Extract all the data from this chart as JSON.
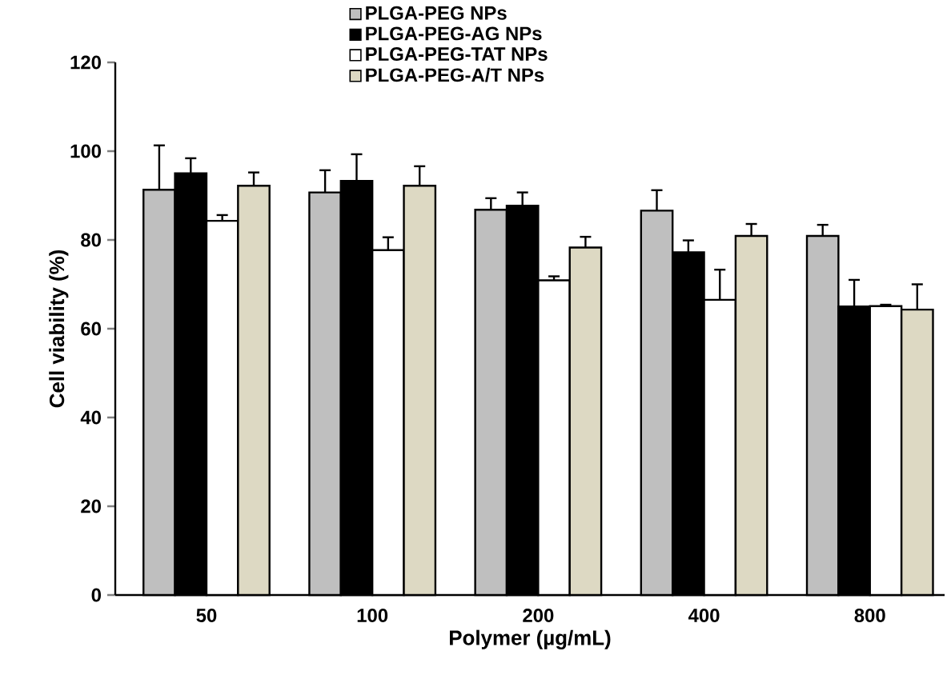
{
  "chart_data": {
    "type": "bar",
    "xlabel": "Polymer  (µg/mL)",
    "ylabel": "Cell viability  (%)",
    "categories": [
      "50",
      "100",
      "200",
      "400",
      "800"
    ],
    "series": [
      {
        "name": "PLGA-PEG NPs",
        "color": "#bfbfbf",
        "values": [
          91.3,
          90.7,
          86.8,
          86.6,
          80.9
        ],
        "errors": [
          [
            91.3,
            101.3
          ],
          [
            90.7,
            95.7
          ],
          [
            86.8,
            89.4
          ],
          [
            86.6,
            91.2
          ],
          [
            80.9,
            83.4
          ]
        ]
      },
      {
        "name": "PLGA-PEG-AG NPs",
        "color": "#000000",
        "values": [
          95.0,
          93.3,
          87.7,
          77.2,
          65.0
        ],
        "errors": [
          [
            95.0,
            98.4
          ],
          [
            93.3,
            99.3
          ],
          [
            87.7,
            90.7
          ],
          [
            77.2,
            79.9
          ],
          [
            65.0,
            71.0
          ]
        ]
      },
      {
        "name": "PLGA-PEG-TAT NPs",
        "color": "#ffffff",
        "values": [
          84.3,
          77.7,
          70.9,
          66.5,
          65.1
        ],
        "errors": [
          [
            84.3,
            85.6
          ],
          [
            77.7,
            80.6
          ],
          [
            70.9,
            71.8
          ],
          [
            66.5,
            73.3
          ],
          [
            65.1,
            65.4
          ]
        ]
      },
      {
        "name": "PLGA-PEG-A/T NPs",
        "color": "#ddd9c3",
        "values": [
          92.2,
          92.2,
          78.3,
          80.9,
          64.3
        ],
        "errors": [
          [
            92.2,
            95.2
          ],
          [
            92.2,
            96.6
          ],
          [
            78.3,
            80.7
          ],
          [
            80.9,
            83.6
          ],
          [
            64.3,
            70.0
          ]
        ]
      }
    ],
    "ylim": [
      0,
      120
    ],
    "yticks": [
      0,
      20,
      40,
      60,
      80,
      100,
      120
    ],
    "grid": false,
    "legend": "top"
  }
}
